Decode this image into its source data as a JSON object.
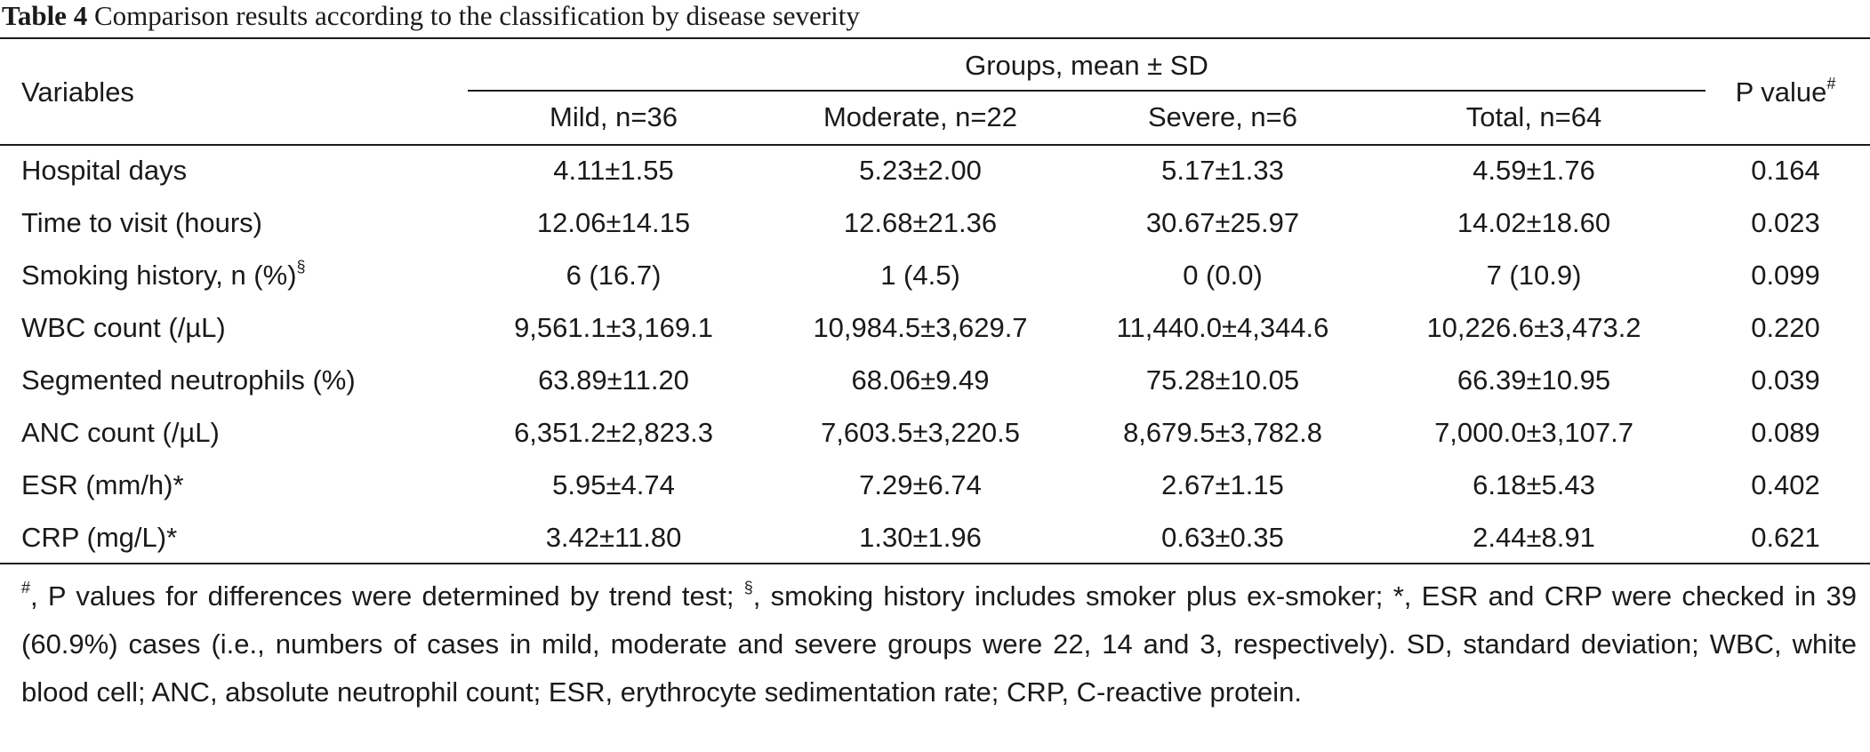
{
  "caption": {
    "label": "Table 4",
    "text": " Comparison results according to the classification by disease severity"
  },
  "header": {
    "variables": "Variables",
    "group": "Groups, mean ± SD",
    "p_value": "P value",
    "p_value_mark": "#",
    "columns": [
      "Mild, n=36",
      "Moderate, n=22",
      "Severe, n=6",
      "Total, n=64"
    ]
  },
  "rows": [
    {
      "variable": "Hospital days",
      "mark": "",
      "mild": "4.11±1.55",
      "moderate": "5.23±2.00",
      "severe": "5.17±1.33",
      "total": "4.59±1.76",
      "p": "0.164"
    },
    {
      "variable": "Time to visit (hours)",
      "mark": "",
      "mild": "12.06±14.15",
      "moderate": "12.68±21.36",
      "severe": "30.67±25.97",
      "total": "14.02±18.60",
      "p": "0.023"
    },
    {
      "variable": "Smoking history, n (%)",
      "mark": "§",
      "mild": "6 (16.7)",
      "moderate": "1 (4.5)",
      "severe": "0 (0.0)",
      "total": "7 (10.9)",
      "p": "0.099"
    },
    {
      "variable": "WBC count (/µL)",
      "mark": "",
      "mild": "9,561.1±3,169.1",
      "moderate": "10,984.5±3,629.7",
      "severe": "11,440.0±4,344.6",
      "total": "10,226.6±3,473.2",
      "p": "0.220"
    },
    {
      "variable": "Segmented neutrophils (%)",
      "mark": "",
      "mild": "63.89±11.20",
      "moderate": "68.06±9.49",
      "severe": "75.28±10.05",
      "total": "66.39±10.95",
      "p": "0.039"
    },
    {
      "variable": "ANC count (/µL)",
      "mark": "",
      "mild": "6,351.2±2,823.3",
      "moderate": "7,603.5±3,220.5",
      "severe": "8,679.5±3,782.8",
      "total": "7,000.0±3,107.7",
      "p": "0.089"
    },
    {
      "variable": "ESR (mm/h)*",
      "mark": "",
      "mild": "5.95±4.74",
      "moderate": "7.29±6.74",
      "severe": "2.67±1.15",
      "total": "6.18±5.43",
      "p": "0.402"
    },
    {
      "variable": "CRP (mg/L)*",
      "mark": "",
      "mild": "3.42±11.80",
      "moderate": "1.30±1.96",
      "severe": "0.63±0.35",
      "total": "2.44±8.91",
      "p": "0.621"
    }
  ],
  "footnote": {
    "mark1": "#",
    "text1": ", P values for differences were determined by trend test; ",
    "mark2": "§",
    "text2": ", smoking history includes smoker plus ex-smoker; *, ESR and CRP were checked in 39 (60.9%) cases (i.e., numbers of cases in mild, moderate and severe groups were 22, 14 and 3, respectively). SD, standard deviation; WBC, white blood cell; ANC, absolute neutrophil count; ESR, erythrocyte sedimentation rate; CRP, C-reactive protein."
  }
}
